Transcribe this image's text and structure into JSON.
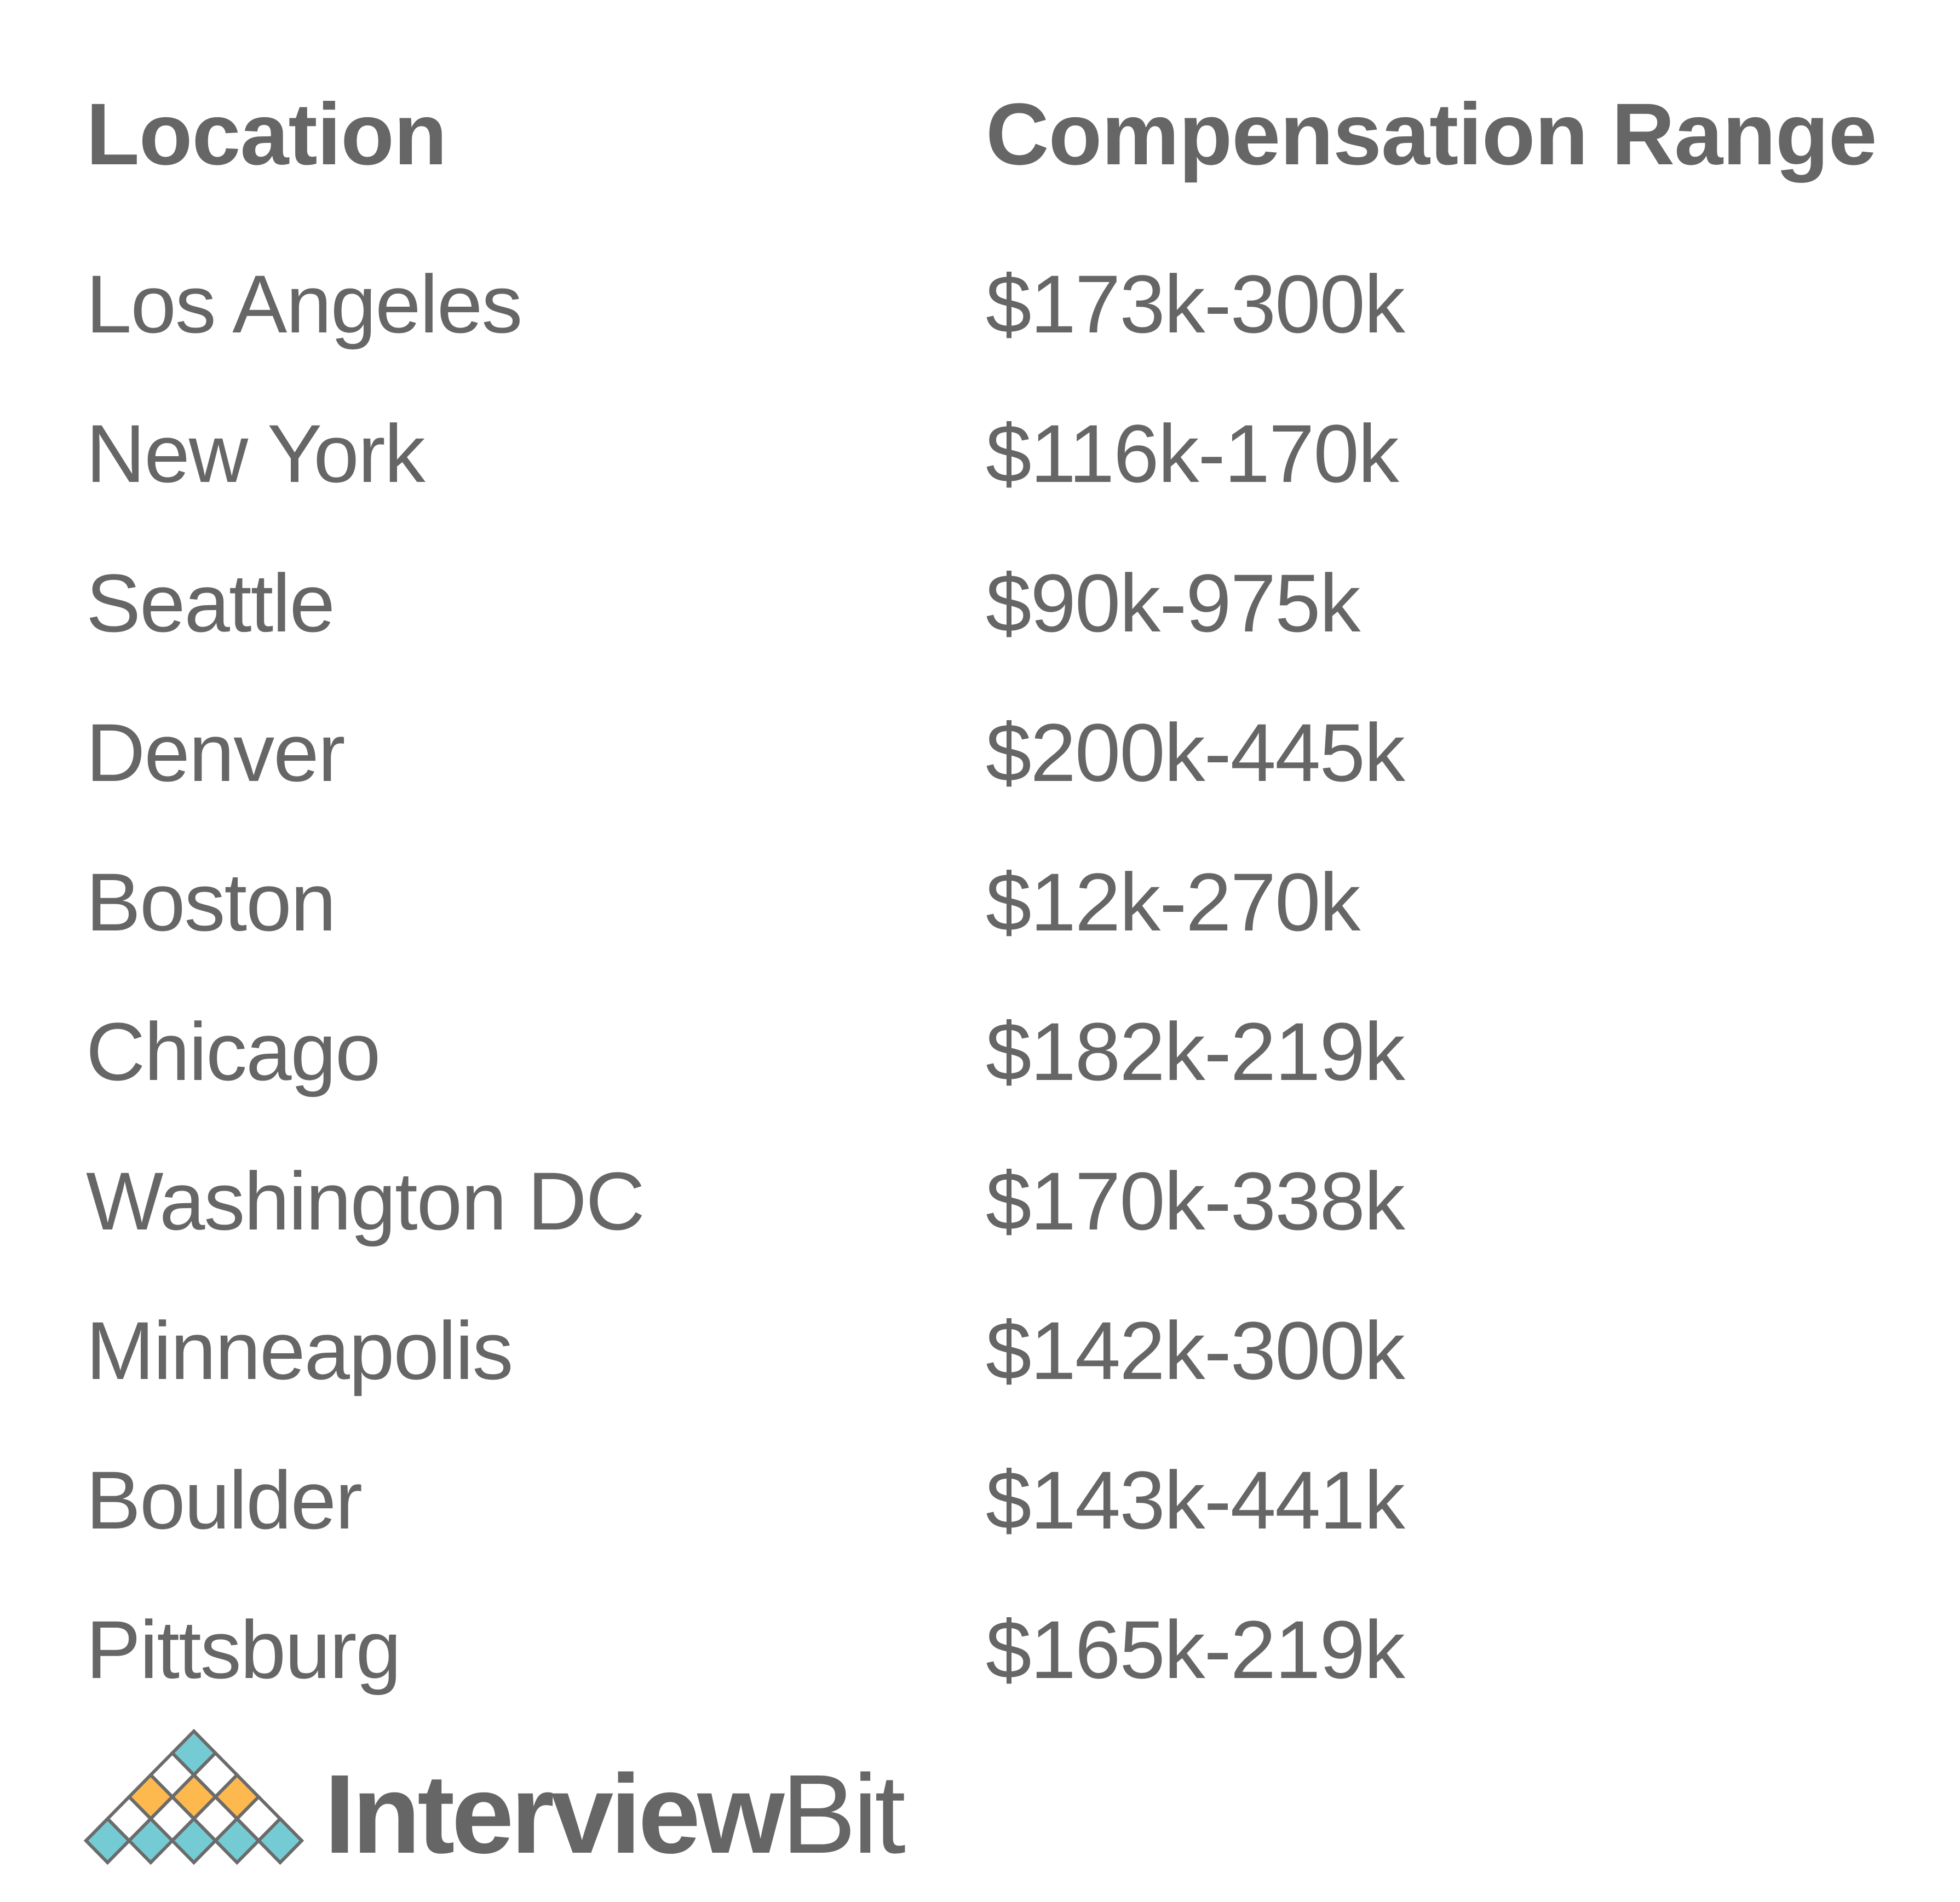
{
  "table": {
    "headers": [
      "Location",
      "Compensation Range"
    ],
    "rows": [
      {
        "location": "Los Angeles",
        "range": "$173k-300k"
      },
      {
        "location": "New York",
        "range": "$116k-170k"
      },
      {
        "location": "Seattle",
        "range": "$90k-975k"
      },
      {
        "location": "Denver",
        "range": "$200k-445k"
      },
      {
        "location": "Boston",
        "range": "$12k-270k"
      },
      {
        "location": "Chicago",
        "range": "$182k-219k"
      },
      {
        "location": "Washington DC",
        "range": "$170k-338k"
      },
      {
        "location": "Minneapolis",
        "range": "$142k-300k"
      },
      {
        "location": "Boulder",
        "range": "$143k-441k"
      },
      {
        "location": "Pittsburg",
        "range": "$165k-219k"
      }
    ]
  },
  "logo": {
    "brand_bold": "Interview",
    "brand_regular": "Bit",
    "colors": {
      "teal": "#74cbd3",
      "orange": "#fdb94e",
      "outline": "#6b6b6b",
      "text": "#666666"
    }
  }
}
